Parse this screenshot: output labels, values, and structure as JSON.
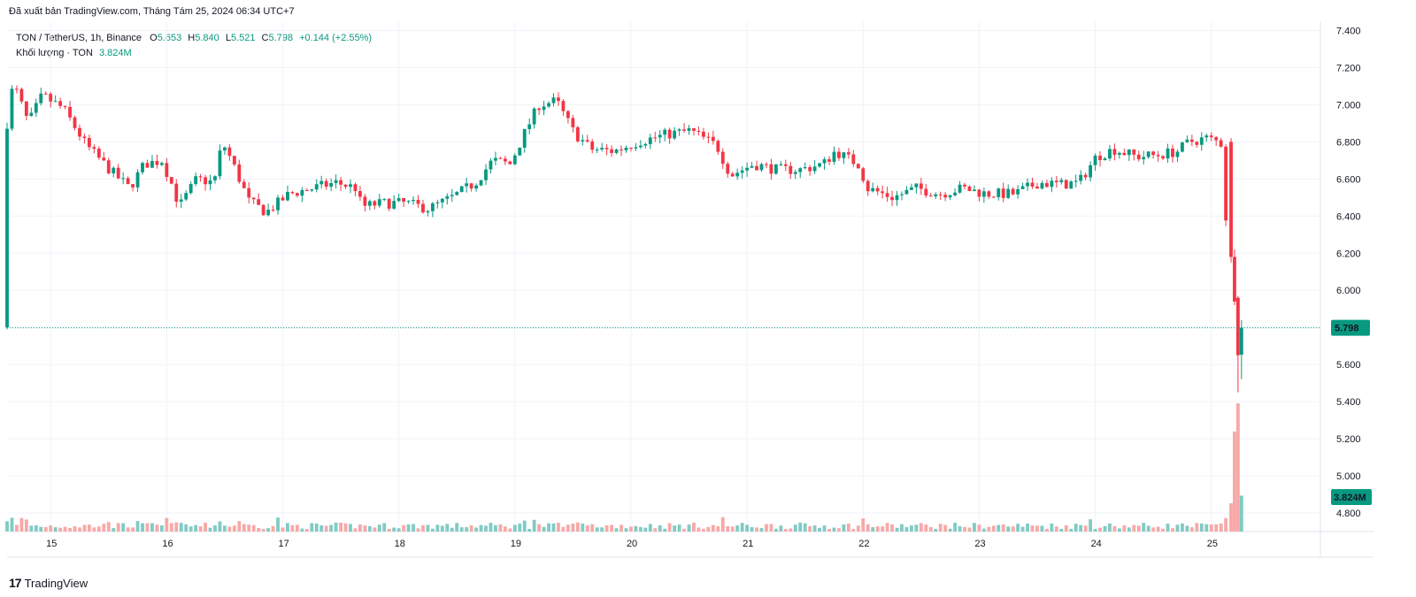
{
  "header": {
    "export_note": "Đã xuất bản TradingView.com, Tháng Tám 25, 2024 06:34 UTC+7"
  },
  "legend": {
    "symbol": "TON / TetherUS, 1h, Binance",
    "o_label": "O",
    "o": "5.653",
    "h_label": "H",
    "h": "5.840",
    "l_label": "L",
    "l": "5.521",
    "c_label": "C",
    "c": "5.798",
    "change": "+0.144 (+2.55%)",
    "volume_label": "Khối lượng · TON",
    "volume": "3.824M"
  },
  "brand": {
    "logo": "17",
    "name": "TradingView"
  },
  "colors": {
    "up": "#089981",
    "down": "#F23645",
    "up_vol": "#80cbc4",
    "down_vol": "#f7a9a7",
    "grid": "#f0f3fa"
  },
  "chart_data": {
    "type": "candlestick",
    "instrument": "TON / TetherUS",
    "interval": "1h",
    "exchange": "Binance",
    "ylim": [
      4.7,
      7.45
    ],
    "yticks": [
      "7.400",
      "7.200",
      "7.000",
      "6.800",
      "6.600",
      "6.400",
      "6.200",
      "6.000",
      "5.800",
      "5.600",
      "5.400",
      "5.200",
      "5.000",
      "4.800"
    ],
    "ytick_values": [
      7.4,
      7.2,
      7.0,
      6.8,
      6.6,
      6.4,
      6.2,
      6.0,
      5.8,
      5.6,
      5.4,
      5.2,
      5.0,
      4.8
    ],
    "xticks": [
      "15",
      "16",
      "17",
      "18",
      "19",
      "20",
      "21",
      "22",
      "23",
      "24",
      "25"
    ],
    "xtick_days": [
      15,
      16,
      17,
      18,
      19,
      20,
      21,
      22,
      23,
      24,
      25
    ],
    "x_start_day": 14.625,
    "x_end_day": 25.94,
    "last_price": "5.798",
    "last_price_value": 5.798,
    "last_volume": "3.824M",
    "anchors": [
      [
        14.63,
        6.75
      ],
      [
        14.72,
        7.12
      ],
      [
        14.85,
        6.9
      ],
      [
        14.97,
        7.05
      ],
      [
        15.15,
        6.98
      ],
      [
        15.35,
        6.78
      ],
      [
        15.55,
        6.65
      ],
      [
        15.72,
        6.55
      ],
      [
        15.85,
        6.68
      ],
      [
        16.0,
        6.7
      ],
      [
        16.1,
        6.55
      ],
      [
        16.15,
        6.45
      ],
      [
        16.3,
        6.6
      ],
      [
        16.45,
        6.58
      ],
      [
        16.52,
        6.8
      ],
      [
        16.6,
        6.7
      ],
      [
        16.75,
        6.48
      ],
      [
        16.9,
        6.42
      ],
      [
        17.1,
        6.52
      ],
      [
        17.3,
        6.55
      ],
      [
        17.5,
        6.58
      ],
      [
        17.68,
        6.55
      ],
      [
        17.72,
        6.45
      ],
      [
        17.9,
        6.47
      ],
      [
        18.1,
        6.47
      ],
      [
        18.3,
        6.44
      ],
      [
        18.5,
        6.5
      ],
      [
        18.7,
        6.58
      ],
      [
        18.85,
        6.7
      ],
      [
        19.0,
        6.68
      ],
      [
        19.15,
        6.88
      ],
      [
        19.25,
        7.0
      ],
      [
        19.4,
        7.02
      ],
      [
        19.55,
        6.85
      ],
      [
        19.7,
        6.76
      ],
      [
        19.9,
        6.75
      ],
      [
        20.1,
        6.8
      ],
      [
        20.35,
        6.84
      ],
      [
        20.55,
        6.86
      ],
      [
        20.78,
        6.78
      ],
      [
        20.9,
        6.62
      ],
      [
        21.1,
        6.68
      ],
      [
        21.3,
        6.65
      ],
      [
        21.5,
        6.65
      ],
      [
        21.7,
        6.68
      ],
      [
        21.8,
        6.75
      ],
      [
        22.0,
        6.68
      ],
      [
        22.08,
        6.55
      ],
      [
        22.3,
        6.5
      ],
      [
        22.5,
        6.55
      ],
      [
        22.7,
        6.52
      ],
      [
        22.9,
        6.55
      ],
      [
        23.1,
        6.52
      ],
      [
        23.35,
        6.52
      ],
      [
        23.55,
        6.58
      ],
      [
        23.75,
        6.57
      ],
      [
        23.9,
        6.58
      ],
      [
        24.05,
        6.72
      ],
      [
        24.2,
        6.76
      ],
      [
        24.4,
        6.72
      ],
      [
        24.6,
        6.73
      ],
      [
        24.75,
        6.75
      ],
      [
        24.85,
        6.8
      ],
      [
        25.0,
        6.82
      ],
      [
        25.1,
        6.8
      ],
      [
        25.16,
        6.78
      ],
      [
        25.17,
        6.2
      ],
      [
        25.2,
        5.95
      ],
      [
        25.23,
        5.65
      ],
      [
        25.26,
        5.8
      ]
    ],
    "last_candles": [
      {
        "day": 25.17,
        "o": 6.8,
        "h": 6.82,
        "l": 6.15,
        "c": 6.18
      },
      {
        "day": 25.2,
        "o": 6.18,
        "h": 6.22,
        "l": 5.92,
        "c": 5.94
      },
      {
        "day": 25.23,
        "o": 5.96,
        "h": 5.97,
        "l": 5.45,
        "c": 5.65
      },
      {
        "day": 25.26,
        "o": 5.653,
        "h": 5.84,
        "l": 5.521,
        "c": 5.798
      }
    ],
    "volume_spikes": [
      {
        "day": 25.17,
        "v": 0.22,
        "dir": "down"
      },
      {
        "day": 25.2,
        "v": 0.78,
        "dir": "down"
      },
      {
        "day": 25.23,
        "v": 1.0,
        "dir": "down"
      },
      {
        "day": 25.26,
        "v": 0.28,
        "dir": "up"
      }
    ]
  }
}
